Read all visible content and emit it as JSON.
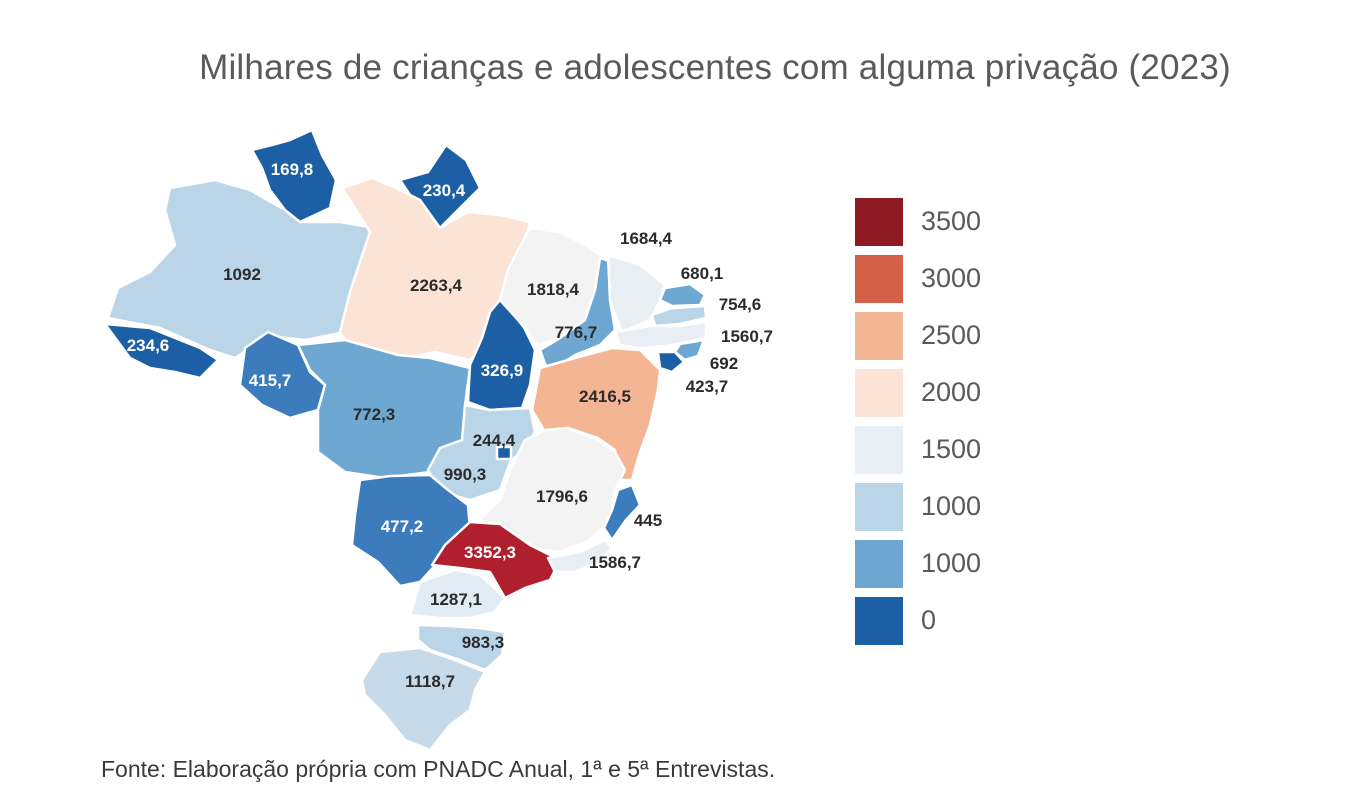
{
  "title": "Milhares de crianças e adolescentes com alguma privação (2023)",
  "source": "Fonte: Elaboração própria com PNADC Anual, 1ª e 5ª Entrevistas.",
  "colors": {
    "c3500": "#8e1a23",
    "c3000": "#d5604a",
    "c2500": "#f4b595",
    "c2000": "#fbe3d6",
    "c1500": "#e8eef3",
    "c1000a": "#bad5e8",
    "c1000b": "#6ea7d1",
    "c0": "#1d5fa4"
  },
  "legend": [
    {
      "label": "3500",
      "color": "#8e1a23"
    },
    {
      "label": "3000",
      "color": "#d5604a"
    },
    {
      "label": "2500",
      "color": "#f4b595"
    },
    {
      "label": "2000",
      "color": "#fbe3d6"
    },
    {
      "label": "1500",
      "color": "#e8eef3"
    },
    {
      "label": "1000",
      "color": "#bad5e8"
    },
    {
      "label": "1000",
      "color": "#6ea7d1"
    },
    {
      "label": "0",
      "color": "#1d5fa4"
    }
  ],
  "states": {
    "rr": {
      "value": "169,8"
    },
    "ap": {
      "value": "230,4"
    },
    "am": {
      "value": "1092"
    },
    "pa": {
      "value": "2263,4"
    },
    "ac": {
      "value": "234,6"
    },
    "ro": {
      "value": "415,7"
    },
    "mt": {
      "value": "772,3"
    },
    "to": {
      "value": "326,9"
    },
    "ma": {
      "value": "1818,4"
    },
    "pi": {
      "value": "776,7"
    },
    "ce": {
      "value": "1684,4"
    },
    "rn": {
      "value": "680,1"
    },
    "pb": {
      "value": "754,6"
    },
    "pe": {
      "value": "1560,7"
    },
    "al": {
      "value": "692"
    },
    "se": {
      "value": "423,7"
    },
    "ba": {
      "value": "2416,5"
    },
    "df": {
      "value": "244,4"
    },
    "go": {
      "value": "990,3"
    },
    "mg": {
      "value": "1796,6"
    },
    "es": {
      "value": "445"
    },
    "ms": {
      "value": "477,2"
    },
    "sp": {
      "value": "3352,3"
    },
    "rj": {
      "value": "1586,7"
    },
    "pr": {
      "value": "1287,1"
    },
    "sc": {
      "value": "983,3"
    },
    "rs": {
      "value": "1118,7"
    }
  }
}
